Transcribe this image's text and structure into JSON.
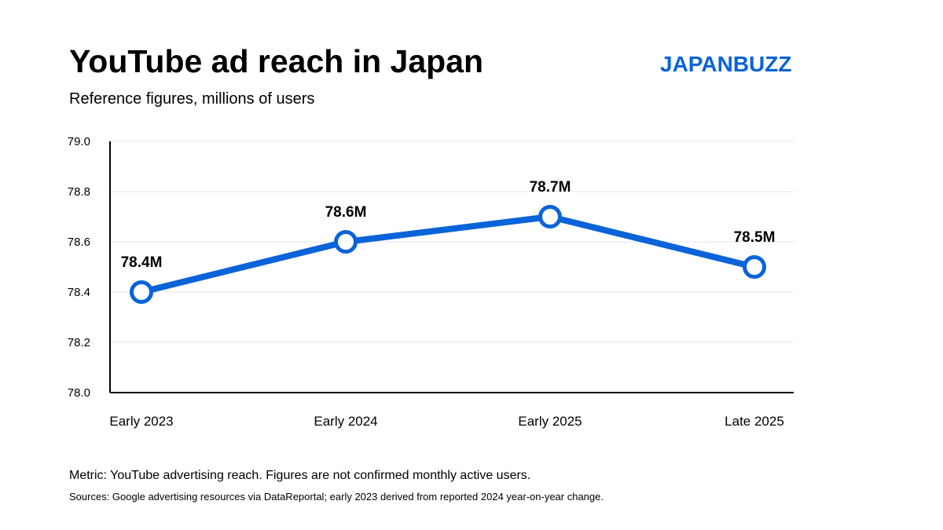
{
  "header": {
    "title": "YouTube ad reach in Japan",
    "subtitle": "Reference figures, millions of users",
    "brand": "JAPANBUZZ"
  },
  "footer": {
    "note": "Metric: YouTube advertising reach. Figures are not confirmed monthly active users.",
    "source": "Sources: Google advertising resources via DataReportal; early 2023 derived from reported 2024 year-on-year change."
  },
  "colors": {
    "accent": "#0a63d8",
    "brand": "#0a63d8",
    "gridline": "#ecedf8",
    "axis": "#000000",
    "text": "#000000"
  },
  "chart_data": {
    "type": "line",
    "title": "YouTube ad reach in Japan",
    "subtitle": "Reference figures, millions of users",
    "xlabel": "",
    "ylabel": "",
    "categories": [
      "Early 2023",
      "Early 2024",
      "Early 2025",
      "Late 2025"
    ],
    "series": [
      {
        "values": [
          78.4,
          78.6,
          78.7,
          78.5
        ],
        "labels": [
          "78.4M",
          "78.6M",
          "78.7M",
          "78.5M"
        ]
      }
    ],
    "ylim": [
      78.0,
      79.0
    ],
    "yticks": [
      78.0,
      78.2,
      78.4,
      78.6,
      78.8,
      79.0
    ],
    "ytick_labels": [
      "78.0",
      "78.2",
      "78.4",
      "78.6",
      "78.8",
      "79.0"
    ],
    "grid": true,
    "legend": "none",
    "marker": "hollow circle"
  }
}
